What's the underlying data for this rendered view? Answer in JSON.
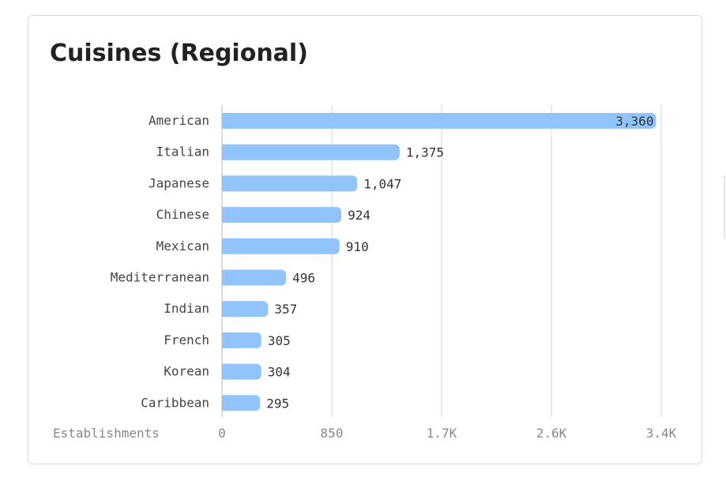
{
  "card": {
    "title": "Cuisines (Regional)"
  },
  "chart_data": {
    "type": "bar",
    "orientation": "horizontal",
    "title": "Cuisines (Regional)",
    "xlabel": "Establishments",
    "ylabel": "",
    "categories": [
      "American",
      "Italian",
      "Japanese",
      "Chinese",
      "Mexican",
      "Mediterranean",
      "Indian",
      "French",
      "Korean",
      "Caribbean"
    ],
    "values": [
      3360,
      1375,
      1047,
      924,
      910,
      496,
      357,
      305,
      304,
      295
    ],
    "value_labels": [
      "3,360",
      "1,375",
      "1,047",
      "924",
      "910",
      "496",
      "357",
      "305",
      "304",
      "295"
    ],
    "xlim": [
      0,
      3400
    ],
    "xticks": [
      0,
      850,
      1700,
      2550,
      3400
    ],
    "xtick_labels": [
      "0",
      "850",
      "1.7K",
      "2.6K",
      "3.4K"
    ],
    "grid": true,
    "bar_color": "#90c4fb"
  }
}
